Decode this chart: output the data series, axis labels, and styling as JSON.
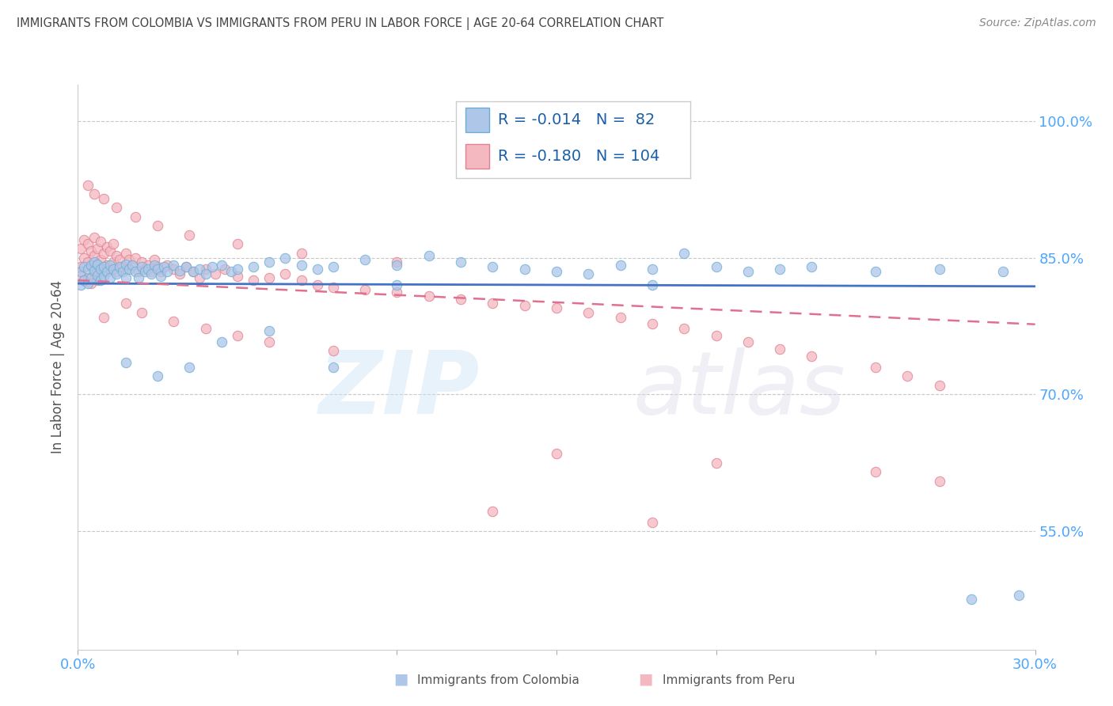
{
  "title": "IMMIGRANTS FROM COLOMBIA VS IMMIGRANTS FROM PERU IN LABOR FORCE | AGE 20-64 CORRELATION CHART",
  "source": "Source: ZipAtlas.com",
  "ylabel": "In Labor Force | Age 20-64",
  "colombia_color": "#aec6e8",
  "colombia_edge": "#6aaed6",
  "peru_color": "#f4b8c1",
  "peru_edge": "#e08090",
  "trendline_colombia_color": "#4472c4",
  "trendline_peru_color": "#e07090",
  "background_color": "#ffffff",
  "title_color": "#555555",
  "axis_label_color": "#4da6ff",
  "colombia_R": -0.014,
  "colombia_N": 82,
  "peru_R": -0.18,
  "peru_N": 104,
  "xlim": [
    0.0,
    0.3
  ],
  "ylim": [
    0.42,
    1.04
  ],
  "yticks": [
    0.55,
    0.7,
    0.85,
    1.0
  ],
  "ytick_labels": [
    "55.0%",
    "70.0%",
    "85.0%",
    "100.0%"
  ],
  "colombia_scatter_x": [
    0.001,
    0.001,
    0.002,
    0.002,
    0.003,
    0.003,
    0.004,
    0.004,
    0.005,
    0.005,
    0.006,
    0.006,
    0.007,
    0.007,
    0.008,
    0.008,
    0.009,
    0.01,
    0.01,
    0.011,
    0.012,
    0.013,
    0.014,
    0.015,
    0.015,
    0.016,
    0.017,
    0.018,
    0.019,
    0.02,
    0.021,
    0.022,
    0.023,
    0.024,
    0.025,
    0.026,
    0.027,
    0.028,
    0.03,
    0.032,
    0.034,
    0.036,
    0.038,
    0.04,
    0.042,
    0.045,
    0.048,
    0.05,
    0.055,
    0.06,
    0.065,
    0.07,
    0.075,
    0.08,
    0.09,
    0.1,
    0.11,
    0.12,
    0.13,
    0.14,
    0.15,
    0.16,
    0.17,
    0.18,
    0.19,
    0.2,
    0.21,
    0.22,
    0.23,
    0.25,
    0.27,
    0.29,
    0.015,
    0.025,
    0.035,
    0.045,
    0.06,
    0.08,
    0.1,
    0.18,
    0.28,
    0.295
  ],
  "colombia_scatter_y": [
    0.835,
    0.82,
    0.84,
    0.825,
    0.838,
    0.822,
    0.842,
    0.828,
    0.836,
    0.845,
    0.831,
    0.843,
    0.838,
    0.825,
    0.84,
    0.83,
    0.835,
    0.842,
    0.828,
    0.838,
    0.832,
    0.84,
    0.835,
    0.843,
    0.828,
    0.838,
    0.842,
    0.835,
    0.828,
    0.84,
    0.835,
    0.838,
    0.832,
    0.842,
    0.838,
    0.83,
    0.84,
    0.835,
    0.842,
    0.836,
    0.84,
    0.835,
    0.838,
    0.832,
    0.84,
    0.842,
    0.835,
    0.838,
    0.84,
    0.845,
    0.85,
    0.842,
    0.838,
    0.84,
    0.848,
    0.842,
    0.852,
    0.845,
    0.84,
    0.838,
    0.835,
    0.832,
    0.842,
    0.838,
    0.855,
    0.84,
    0.835,
    0.838,
    0.84,
    0.835,
    0.838,
    0.835,
    0.735,
    0.72,
    0.73,
    0.758,
    0.77,
    0.73,
    0.82,
    0.82,
    0.475,
    0.48
  ],
  "peru_scatter_x": [
    0.001,
    0.001,
    0.001,
    0.002,
    0.002,
    0.002,
    0.003,
    0.003,
    0.003,
    0.004,
    0.004,
    0.004,
    0.005,
    0.005,
    0.005,
    0.006,
    0.006,
    0.006,
    0.007,
    0.007,
    0.007,
    0.008,
    0.008,
    0.009,
    0.009,
    0.01,
    0.01,
    0.011,
    0.011,
    0.012,
    0.012,
    0.013,
    0.014,
    0.015,
    0.015,
    0.016,
    0.017,
    0.018,
    0.019,
    0.02,
    0.021,
    0.022,
    0.023,
    0.024,
    0.025,
    0.026,
    0.028,
    0.03,
    0.032,
    0.034,
    0.036,
    0.038,
    0.04,
    0.043,
    0.046,
    0.05,
    0.055,
    0.06,
    0.065,
    0.07,
    0.075,
    0.08,
    0.09,
    0.1,
    0.11,
    0.12,
    0.13,
    0.14,
    0.15,
    0.16,
    0.17,
    0.18,
    0.19,
    0.2,
    0.21,
    0.22,
    0.23,
    0.25,
    0.26,
    0.27,
    0.003,
    0.005,
    0.008,
    0.012,
    0.018,
    0.025,
    0.035,
    0.05,
    0.07,
    0.1,
    0.008,
    0.015,
    0.02,
    0.03,
    0.04,
    0.05,
    0.06,
    0.08,
    0.13,
    0.18,
    0.15,
    0.2,
    0.25,
    0.27
  ],
  "peru_scatter_y": [
    0.86,
    0.84,
    0.83,
    0.87,
    0.85,
    0.825,
    0.865,
    0.845,
    0.828,
    0.858,
    0.84,
    0.822,
    0.872,
    0.852,
    0.832,
    0.86,
    0.842,
    0.825,
    0.868,
    0.848,
    0.828,
    0.855,
    0.838,
    0.862,
    0.842,
    0.858,
    0.838,
    0.865,
    0.845,
    0.852,
    0.835,
    0.848,
    0.84,
    0.855,
    0.838,
    0.848,
    0.842,
    0.85,
    0.835,
    0.845,
    0.838,
    0.842,
    0.835,
    0.848,
    0.84,
    0.835,
    0.842,
    0.838,
    0.832,
    0.84,
    0.835,
    0.828,
    0.838,
    0.832,
    0.838,
    0.83,
    0.825,
    0.828,
    0.832,
    0.825,
    0.82,
    0.818,
    0.815,
    0.812,
    0.808,
    0.805,
    0.8,
    0.798,
    0.795,
    0.79,
    0.785,
    0.778,
    0.772,
    0.765,
    0.758,
    0.75,
    0.742,
    0.73,
    0.72,
    0.71,
    0.93,
    0.92,
    0.915,
    0.905,
    0.895,
    0.885,
    0.875,
    0.865,
    0.855,
    0.845,
    0.785,
    0.8,
    0.79,
    0.78,
    0.772,
    0.765,
    0.758,
    0.748,
    0.572,
    0.56,
    0.635,
    0.625,
    0.615,
    0.605
  ]
}
